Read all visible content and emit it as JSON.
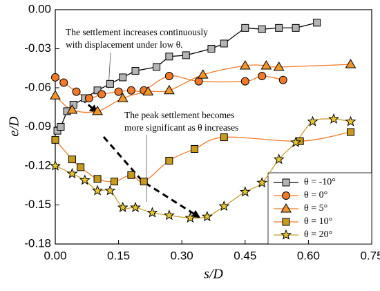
{
  "chart_data": {
    "type": "line",
    "x_label": "s/D",
    "y_label": "e/D",
    "xlim": [
      0,
      0.75
    ],
    "ylim": [
      -0.18,
      0
    ],
    "xticks": [
      {
        "value": 0,
        "label": "0.00"
      },
      {
        "value": 0.15,
        "label": "0.15"
      },
      {
        "value": 0.3,
        "label": "0.30"
      },
      {
        "value": 0.45,
        "label": "0.45"
      },
      {
        "value": 0.6,
        "label": "0.60"
      },
      {
        "value": 0.75,
        "label": "0.75"
      }
    ],
    "yticks": [
      {
        "value": -0.18,
        "label": "-0.18"
      },
      {
        "value": -0.15,
        "label": "-0.15"
      },
      {
        "value": -0.12,
        "label": "-0.12"
      },
      {
        "value": -0.09,
        "label": "-0.09"
      },
      {
        "value": -0.06,
        "label": "-0.06"
      },
      {
        "value": -0.03,
        "label": "-0.03"
      },
      {
        "value": 0,
        "label": "0.00"
      }
    ],
    "legend": "lower right",
    "annotations": [
      {
        "lines": [
          "The settlement increases continuously",
          "with displacement under low θ."
        ]
      },
      {
        "lines": [
          "The peak settlement becomes",
          "more significant as θ increases"
        ]
      }
    ],
    "series": [
      {
        "name": "θ = -10°",
        "marker": "square",
        "color": "#b4b4b4",
        "line_color": "#000000",
        "smooth": false,
        "x": [
          0.005,
          0.013,
          0.028,
          0.043,
          0.07,
          0.1,
          0.13,
          0.16,
          0.19,
          0.24,
          0.27,
          0.31,
          0.37,
          0.4,
          0.45,
          0.49,
          0.53,
          0.57,
          0.62
        ],
        "values": [
          -0.093,
          -0.09,
          -0.078,
          -0.073,
          -0.068,
          -0.062,
          -0.057,
          -0.052,
          -0.047,
          -0.044,
          -0.036,
          -0.035,
          -0.03,
          -0.026,
          -0.014,
          -0.015,
          -0.014,
          -0.014,
          -0.01
        ]
      },
      {
        "name": "θ = 0°",
        "marker": "circle",
        "color": "#f07a2a",
        "line_color": "#f07a2a",
        "smooth": true,
        "x": [
          0.0,
          0.02,
          0.05,
          0.08,
          0.11,
          0.15,
          0.18,
          0.21,
          0.27,
          0.34,
          0.45,
          0.49,
          0.54
        ],
        "values": [
          -0.052,
          -0.056,
          -0.063,
          -0.068,
          -0.065,
          -0.063,
          -0.062,
          -0.062,
          -0.051,
          -0.055,
          -0.055,
          -0.051,
          -0.054
        ]
      },
      {
        "name": "θ = 5°",
        "marker": "triangle",
        "color": "#f0962a",
        "line_color": "#f07a2a",
        "smooth": true,
        "x": [
          0.0,
          0.04,
          0.1,
          0.16,
          0.22,
          0.27,
          0.35,
          0.45,
          0.5,
          0.53,
          0.7
        ],
        "values": [
          -0.066,
          -0.077,
          -0.078,
          -0.068,
          -0.063,
          -0.062,
          -0.05,
          -0.043,
          -0.043,
          -0.044,
          -0.042
        ]
      },
      {
        "name": "θ = 10°",
        "marker": "square",
        "color": "#c89a1e",
        "line_color": "#f07a2a",
        "smooth": true,
        "x": [
          0.0,
          0.04,
          0.06,
          0.1,
          0.14,
          0.18,
          0.21,
          0.27,
          0.33,
          0.4,
          0.58,
          0.7
        ],
        "values": [
          -0.1,
          -0.115,
          -0.121,
          -0.13,
          -0.132,
          -0.127,
          -0.132,
          -0.116,
          -0.107,
          -0.098,
          -0.101,
          -0.094
        ]
      },
      {
        "name": "θ = 20°",
        "marker": "star",
        "color": "#e8c832",
        "line_color": "#c8a032",
        "smooth": true,
        "x": [
          0.0,
          0.04,
          0.07,
          0.1,
          0.13,
          0.16,
          0.19,
          0.23,
          0.27,
          0.32,
          0.36,
          0.4,
          0.45,
          0.49,
          0.53,
          0.57,
          0.61,
          0.66,
          0.7
        ],
        "values": [
          -0.12,
          -0.126,
          -0.131,
          -0.139,
          -0.139,
          -0.152,
          -0.152,
          -0.156,
          -0.158,
          -0.16,
          -0.159,
          -0.151,
          -0.14,
          -0.133,
          -0.115,
          -0.102,
          -0.086,
          -0.084,
          -0.086
        ]
      }
    ]
  }
}
